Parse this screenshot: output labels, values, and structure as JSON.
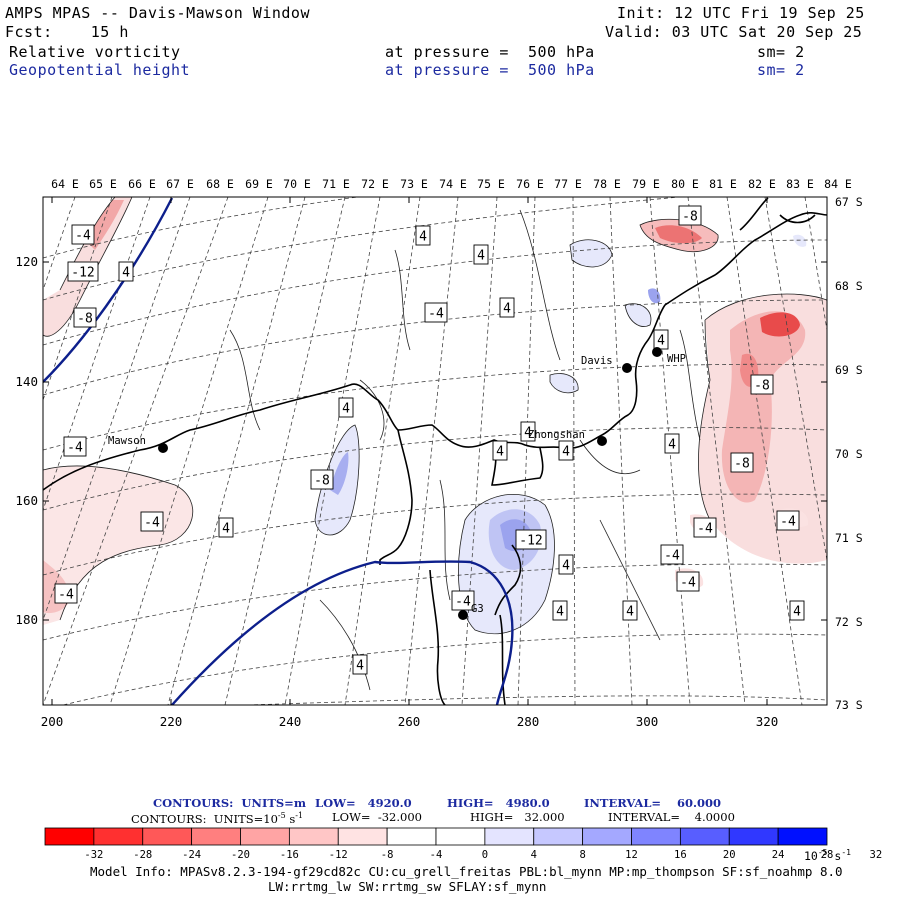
{
  "header": {
    "title": "AMPS MPAS -- Davis-Mawson Window",
    "init": "Init: 12 UTC Fri 19 Sep 25",
    "fcst": "Fcst:    15 h",
    "valid": "Valid: 03 UTC Sat 20 Sep 25",
    "fields": [
      {
        "name": "Relative vorticity",
        "level": "at pressure =  500 hPa",
        "sm": "sm= 2"
      },
      {
        "name": "Geopotential height",
        "level": "at pressure =  500 hPa",
        "sm": "sm= 2"
      }
    ]
  },
  "map": {
    "top_lon_labels": [
      "64 E",
      "65 E",
      "66 E",
      "67 E",
      "68 E",
      "69 E",
      "70 E",
      "71 E",
      "72 E",
      "73 E",
      "74 E",
      "75 E",
      "76 E",
      "77 E",
      "78 E",
      "79 E",
      "80 E",
      "81 E",
      "82 E",
      "83 E",
      "84 E"
    ],
    "right_lat_labels": [
      "67 S",
      "68 S",
      "69 S",
      "70 S",
      "71 S",
      "72 S",
      "73 S"
    ],
    "left_grid_labels": [
      "120",
      "140",
      "160",
      "180"
    ],
    "bottom_grid_labels": [
      "200",
      "220",
      "240",
      "260",
      "280",
      "300",
      "320"
    ],
    "stations": [
      {
        "name": "Mawson"
      },
      {
        "name": "Davis"
      },
      {
        "name": "WHP"
      },
      {
        "name": "Zhongshan"
      },
      {
        "name": "G3"
      }
    ],
    "contour_labels": [
      "-4",
      "-12",
      "4",
      "-8",
      "4",
      "4",
      "4",
      "-4",
      "4",
      "-4",
      "4",
      "-8",
      "-4",
      "4",
      "4",
      "4",
      "4",
      "-8",
      "-8",
      "-4",
      "-4",
      "-12",
      "4",
      "4",
      "-4",
      "4",
      "4",
      "4",
      "-8",
      "-4",
      "-4",
      "4",
      "-4"
    ],
    "colors": {
      "height_contour": "#0d1f8c",
      "coast": "#000000",
      "red_light": "#f9dede",
      "red_mid": "#f2a7a7",
      "red_strong": "#e84b4b",
      "blue_light": "#e6e8fb",
      "blue_mid": "#a7aef0",
      "blue_strong": "#6f79e6"
    }
  },
  "contours_info": {
    "height": {
      "units": "CONTOURS:  UNITS=m",
      "low": "LOW=   4920.0",
      "high": "HIGH=   4980.0",
      "interval": "INTERVAL=    60.000"
    },
    "vort": {
      "units": "CONTOURS:  UNITS=10",
      "exp": "-5",
      "unit_tail": " s",
      "unit_exp": "-1",
      "low": "LOW=  -32.000",
      "high": "HIGH=   32.000",
      "interval": "INTERVAL=    4.0000"
    }
  },
  "colorbar": {
    "colors": [
      "#ff0000",
      "#ff3030",
      "#ff5858",
      "#ff7f7f",
      "#ffa4a4",
      "#ffc6c6",
      "#ffe3e3",
      "#ffffff",
      "#ffffff",
      "#e4e4ff",
      "#c6c8ff",
      "#a4a8ff",
      "#7f84ff",
      "#585eff",
      "#3038ff",
      "#0010ff"
    ],
    "ticks": [
      "-32",
      "-28",
      "-24",
      "-20",
      "-16",
      "-12",
      "-8",
      "-4",
      "0",
      "4",
      "8",
      "12",
      "16",
      "20",
      "24",
      "28",
      "32"
    ],
    "units": "10",
    "units_exp": "-5",
    "units_tail": " s",
    "units_tail_exp": "-1"
  },
  "model_info": {
    "line1": "Model Info: MPASv8.2.3-194-gf29cd82c CU:cu_grell_freitas PBL:bl_mynn MP:mp_thompson SF:sf_noahmp 8.0",
    "line2": "LW:rrtmg_lw SW:rrtmg_sw SFLAY:sf_mynn"
  }
}
